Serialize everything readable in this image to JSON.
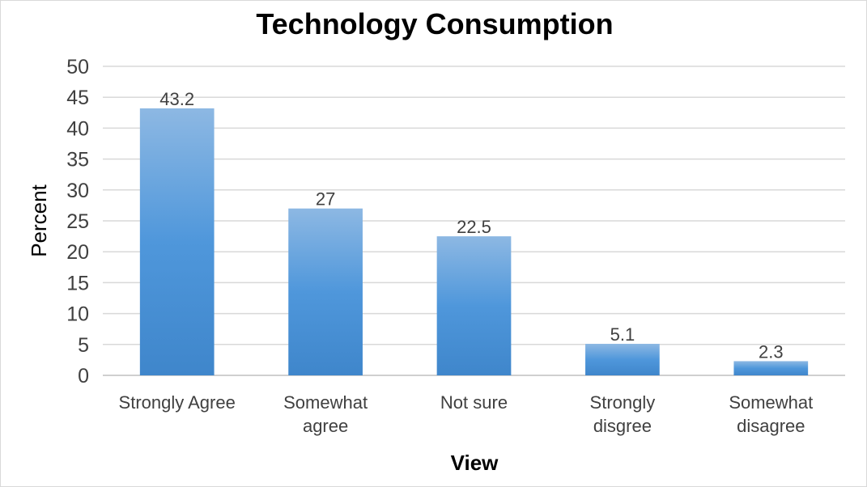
{
  "chart_data": {
    "type": "bar",
    "title": "Technology Consumption",
    "xlabel": "View",
    "ylabel": "Percent",
    "categories": [
      [
        "Strongly Agree"
      ],
      [
        "Somewhat",
        "agree"
      ],
      [
        "Not sure"
      ],
      [
        "Strongly",
        "disgree"
      ],
      [
        "Somewhat",
        "disagree"
      ]
    ],
    "values": [
      43.2,
      27,
      22.5,
      5.1,
      2.3
    ],
    "data_labels": [
      "43.2",
      "27",
      "22.5",
      "5.1",
      "2.3"
    ],
    "ylim": [
      0,
      50
    ],
    "ytick_step": 5,
    "grid": true,
    "legend": "none",
    "bar_color_top": "#8db8e3",
    "bar_color_bottom": "#3f86cb"
  }
}
